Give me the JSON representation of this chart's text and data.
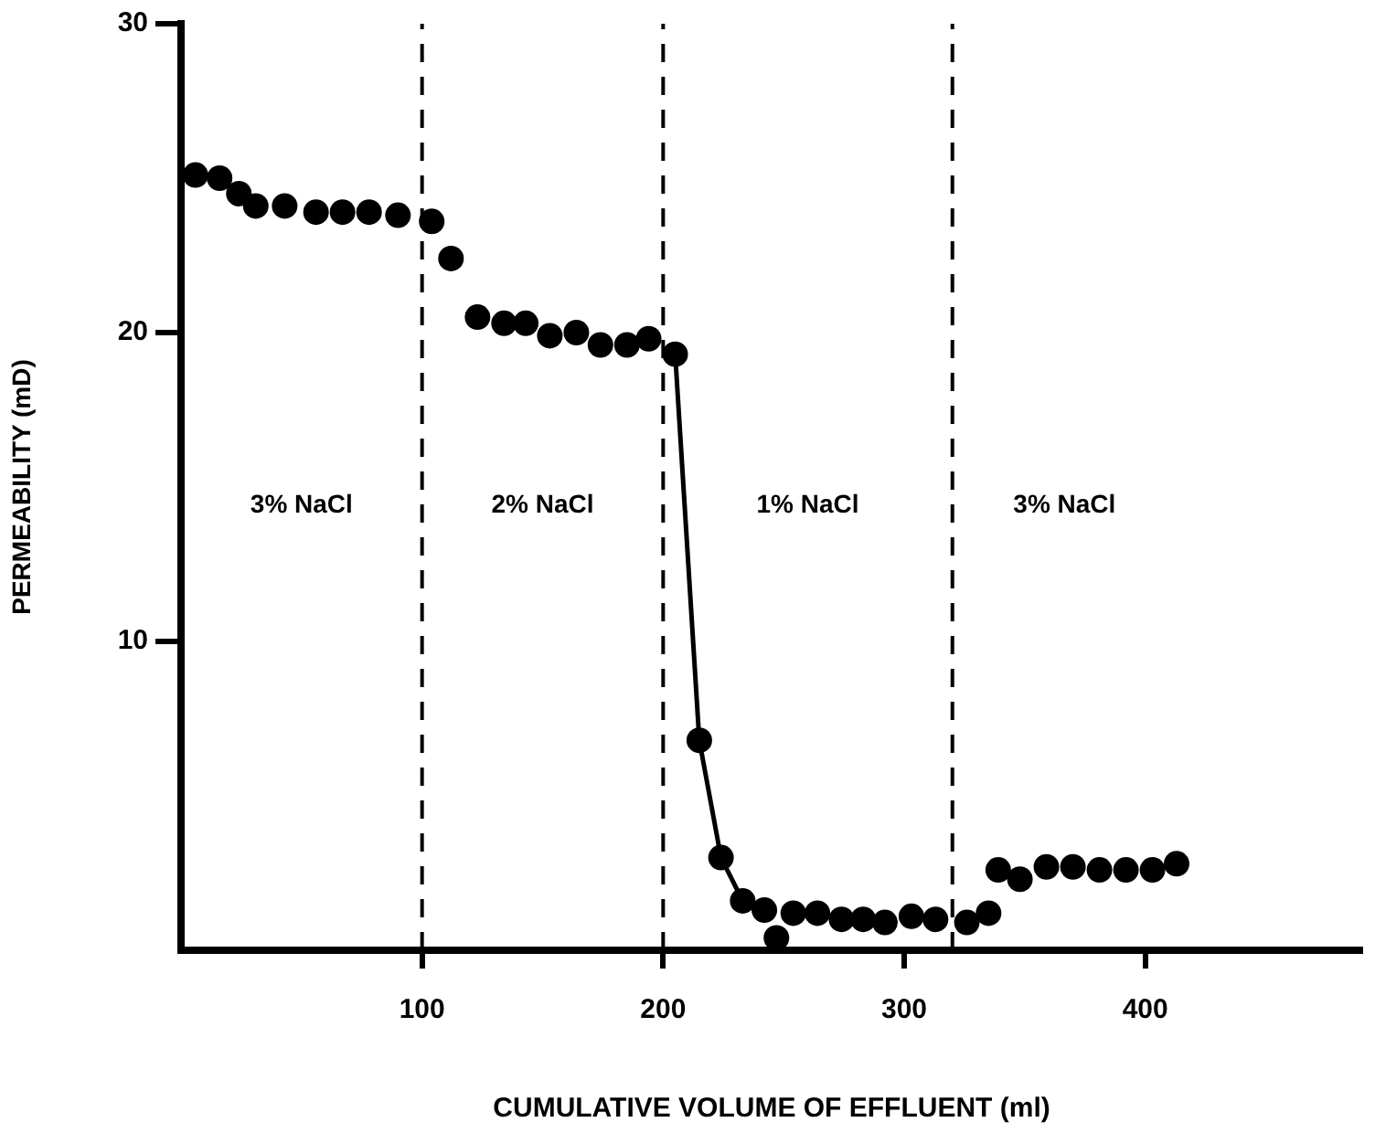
{
  "chart_data": {
    "type": "scatter",
    "xlabel": "CUMULATIVE VOLUME OF EFFLUENT (ml)",
    "ylabel": "PERMEABILITY (mD)",
    "xlim": [
      0,
      490
    ],
    "ylim": [
      0,
      30
    ],
    "xticks": [
      100,
      200,
      300,
      400
    ],
    "yticks": [
      10,
      20,
      30
    ],
    "grid": false,
    "legend": false,
    "marker": "circle",
    "series": [
      {
        "color": "#000000",
        "x": [
          6,
          16,
          24,
          31,
          43,
          56,
          67,
          78,
          90,
          104,
          112,
          123,
          134,
          143,
          153,
          164,
          174,
          185,
          194,
          205,
          215,
          224,
          233,
          242,
          247,
          254,
          264,
          274,
          283,
          292,
          303,
          313,
          326,
          335,
          339,
          348,
          359,
          370,
          381,
          392,
          403,
          413
        ],
        "values": [
          25.1,
          25.0,
          24.5,
          24.1,
          24.1,
          23.9,
          23.9,
          23.9,
          23.8,
          23.6,
          22.4,
          20.5,
          20.3,
          20.3,
          19.9,
          20.0,
          19.6,
          19.6,
          19.8,
          19.3,
          6.8,
          3.0,
          1.6,
          1.3,
          0.4,
          1.2,
          1.2,
          1.0,
          1.0,
          0.9,
          1.1,
          1.0,
          0.9,
          1.2,
          2.6,
          2.3,
          2.7,
          2.7,
          2.6,
          2.6,
          2.6,
          2.8
        ]
      },
      {
        "type": "line",
        "color": "#000000",
        "marker": "none",
        "line_style": "solid",
        "x": [
          205,
          215,
          224,
          233
        ],
        "values": [
          19.3,
          6.8,
          3.0,
          1.6
        ]
      }
    ],
    "ref_lines": [
      {
        "axis": "x",
        "value": 100,
        "color": "#000000",
        "line_style": "dashed"
      },
      {
        "axis": "x",
        "value": 200,
        "color": "#000000",
        "line_style": "dashed"
      },
      {
        "axis": "x",
        "value": 320,
        "color": "#000000",
        "line_style": "dashed"
      }
    ],
    "annotations": [
      "3% NaCl",
      "2% NaCl",
      "1% NaCl",
      "3% NaCl"
    ]
  }
}
